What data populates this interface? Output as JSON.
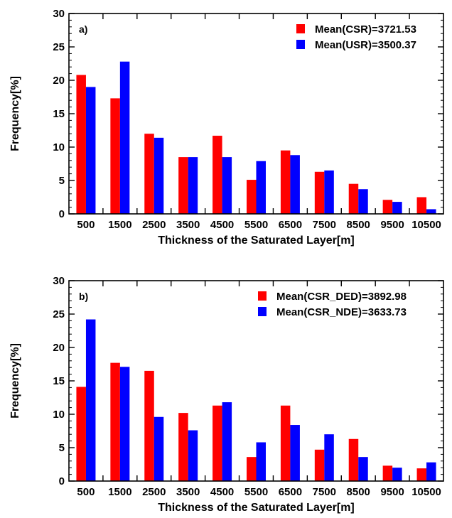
{
  "chart_data": [
    {
      "type": "bar",
      "panel_label": "a)",
      "xlabel": "Thickness of the Saturated Layer[m]",
      "ylabel": "Frequency[%]",
      "ylim": [
        0,
        30
      ],
      "yticks": [
        "0",
        "5",
        "10",
        "15",
        "20",
        "25",
        "30"
      ],
      "categories": [
        "500",
        "1500",
        "2500",
        "3500",
        "4500",
        "5500",
        "6500",
        "7500",
        "8500",
        "9500",
        "10500"
      ],
      "legend_position": "top-right",
      "grid": false,
      "series": [
        {
          "name": "Mean(CSR)=3721.53",
          "color": "#ff0000",
          "values": [
            20.8,
            17.3,
            12.0,
            8.5,
            11.7,
            5.1,
            9.5,
            6.3,
            4.5,
            2.1,
            2.5
          ]
        },
        {
          "name": "Mean(USR)=3500.37",
          "color": "#0000ff",
          "values": [
            19.0,
            22.8,
            11.4,
            8.5,
            8.5,
            7.9,
            8.8,
            6.5,
            3.7,
            1.8,
            0.7
          ]
        }
      ]
    },
    {
      "type": "bar",
      "panel_label": "b)",
      "xlabel": "Thickness of the Saturated Layer[m]",
      "ylabel": "Frequency[%]",
      "ylim": [
        0,
        30
      ],
      "yticks": [
        "0",
        "5",
        "10",
        "15",
        "20",
        "25",
        "30"
      ],
      "categories": [
        "500",
        "1500",
        "2500",
        "3500",
        "4500",
        "5500",
        "6500",
        "7500",
        "8500",
        "9500",
        "10500"
      ],
      "legend_position": "top-right",
      "grid": false,
      "series": [
        {
          "name": "Mean(CSR_DED)=3892.98",
          "color": "#ff0000",
          "values": [
            14.1,
            17.7,
            16.5,
            10.2,
            11.3,
            3.6,
            11.3,
            4.7,
            6.3,
            2.3,
            1.9
          ]
        },
        {
          "name": "Mean(CSR_NDE)=3633.73",
          "color": "#0000ff",
          "values": [
            24.2,
            17.1,
            9.6,
            7.6,
            11.8,
            5.8,
            8.4,
            7.0,
            3.6,
            2.0,
            2.8
          ]
        }
      ]
    }
  ]
}
